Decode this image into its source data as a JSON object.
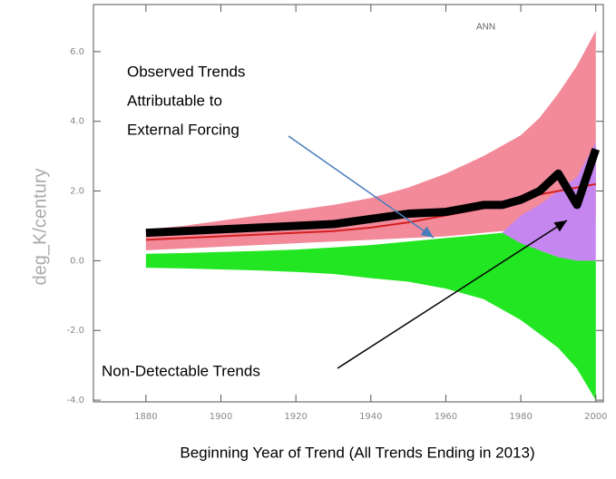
{
  "chart_data": {
    "type": "band",
    "corner_label": "ANN",
    "y_label": "deg_K/century",
    "x_label": "Beginning Year of Trend (All Trends Ending in 2013)",
    "annotations": [
      [
        "Observed Trends",
        "Attributable to",
        "External Forcing"
      ],
      [
        "Non-Detectable Trends"
      ]
    ],
    "xlim": [
      1866,
      2002
    ],
    "ylim": [
      -4.05,
      7.35
    ],
    "xticks": [
      1880,
      1900,
      1920,
      1940,
      1960,
      1980,
      2000
    ],
    "yticks": [
      {
        "value": -4,
        "label": "-4.0"
      },
      {
        "value": -2,
        "label": "-2.0"
      },
      {
        "value": 0,
        "label": "0.0"
      },
      {
        "value": 2,
        "label": "2.0"
      },
      {
        "value": 4,
        "label": "4.0"
      },
      {
        "value": 6,
        "label": "6.0"
      }
    ],
    "bands": [
      {
        "color": "#f28a9a",
        "x": [
          1880,
          1890,
          1900,
          1910,
          1920,
          1930,
          1940,
          1950,
          1960,
          1970,
          1975,
          1980,
          1985,
          1990,
          1995,
          2000
        ],
        "lower": [
          0.3,
          0.35,
          0.4,
          0.45,
          0.5,
          0.55,
          0.6,
          0.65,
          0.7,
          0.8,
          0.85,
          0.9,
          0.95,
          1.0,
          1.1,
          1.2
        ],
        "upper": [
          0.9,
          1.0,
          1.15,
          1.3,
          1.45,
          1.6,
          1.8,
          2.1,
          2.5,
          3.0,
          3.3,
          3.6,
          4.1,
          4.8,
          5.6,
          6.6
        ]
      },
      {
        "color": "#22e622",
        "x": [
          1880,
          1890,
          1900,
          1910,
          1920,
          1930,
          1940,
          1950,
          1960,
          1970,
          1975,
          1980,
          1985,
          1990,
          1995,
          2000
        ],
        "lower": [
          -0.2,
          -0.22,
          -0.25,
          -0.28,
          -0.32,
          -0.38,
          -0.5,
          -0.6,
          -0.8,
          -1.1,
          -1.4,
          -1.7,
          -2.1,
          -2.5,
          -3.1,
          -4.0
        ],
        "upper": [
          0.2,
          0.22,
          0.25,
          0.28,
          0.32,
          0.38,
          0.45,
          0.55,
          0.65,
          0.75,
          0.8,
          0.6,
          0.3,
          0.1,
          0.05,
          0
        ]
      },
      {
        "color": "#c586f0",
        "x": [
          1975,
          1980,
          1985,
          1990,
          1995,
          2000
        ],
        "lower": [
          0.8,
          0.5,
          0.3,
          0.1,
          0,
          0
        ],
        "upper": [
          0.8,
          1.3,
          1.6,
          2.0,
          2.4,
          3.4
        ]
      }
    ],
    "lines": [
      {
        "color": "#d42020",
        "width": 2,
        "x": [
          1880,
          1890,
          1900,
          1910,
          1920,
          1930,
          1940,
          1950,
          1960,
          1970,
          1975,
          1980,
          1985,
          1990,
          1995,
          2000
        ],
        "values": [
          0.6,
          0.65,
          0.7,
          0.75,
          0.8,
          0.85,
          0.95,
          1.1,
          1.3,
          1.5,
          1.6,
          1.7,
          1.9,
          2.0,
          2.1,
          2.2
        ]
      },
      {
        "color": "#000000",
        "width": 9,
        "x": [
          1880,
          1890,
          1900,
          1910,
          1920,
          1930,
          1940,
          1950,
          1960,
          1970,
          1975,
          1980,
          1985,
          1990,
          1995,
          2000
        ],
        "values": [
          0.8,
          0.85,
          0.9,
          0.95,
          1.0,
          1.05,
          1.2,
          1.35,
          1.4,
          1.6,
          1.6,
          1.75,
          2.0,
          2.5,
          1.6,
          3.2
        ]
      }
    ]
  }
}
